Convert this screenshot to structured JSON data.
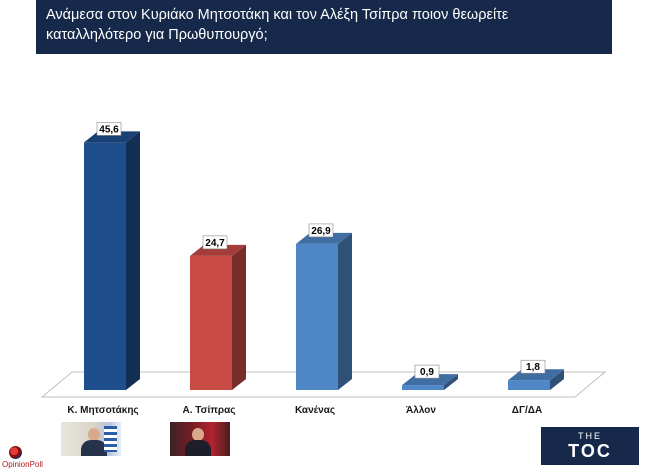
{
  "header": {
    "title": "Ανάμεσα στον Κυριάκο Μητσοτάκη και τον Αλέξη Τσίπρα ποιον θεωρείτε καταλληλότερο για Πρωθυπουργό;"
  },
  "colors": {
    "title_bg": "#16294a",
    "series": [
      "#1f4e8c",
      "#c84b45",
      "#4f86c6",
      "#4f86c6",
      "#4f86c6"
    ]
  },
  "chart_data": {
    "type": "bar",
    "title": "Ανάμεσα στον Κυριάκο Μητσοτάκη και τον Αλέξη Τσίπρα ποιον θεωρείτε καταλληλότερο για Πρωθυπουργό;",
    "categories": [
      "Κ. Μητσοτάκης",
      "Α. Τσίπρας",
      "Κανένας",
      "Άλλον",
      "ΔΓ/ΔΑ"
    ],
    "values": [
      45.6,
      24.7,
      26.9,
      0.9,
      1.8
    ],
    "value_labels": [
      "45,6",
      "24,7",
      "26,9",
      "0,9",
      "1,8"
    ],
    "ylim": [
      0,
      50
    ],
    "grid": false,
    "legend": "none",
    "style": "3d"
  },
  "logos": {
    "toc_the": "THE",
    "toc_main": "TOC",
    "pollster": "OpinionPoll"
  },
  "icons": [
    "photo-mitsotakis",
    "photo-tsipras",
    "toc-logo",
    "opinionpoll-logo"
  ]
}
